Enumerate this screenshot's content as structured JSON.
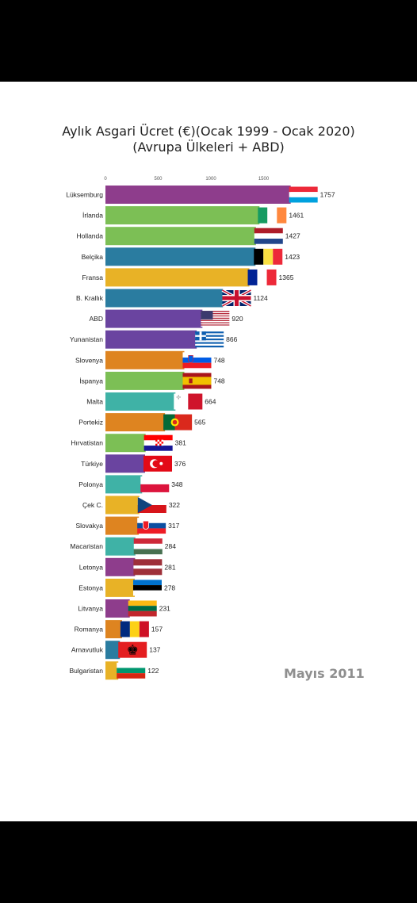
{
  "title": "Aylık Asgari Ücret (€)(Ocak 1999 - Ocak 2020)",
  "subtitle": "(Avrupa Ülkeleri + ABD)",
  "date_label": "Mayıs 2011",
  "chart_data": {
    "type": "bar",
    "orientation": "horizontal",
    "title": "Aylık Asgari Ücret (€)(Ocak 1999 - Ocak 2020)",
    "subtitle": "(Avrupa Ülkeleri + ABD)",
    "xlim": [
      0,
      1800
    ],
    "x_ticks": [
      0,
      500,
      1000,
      1500
    ],
    "categories": [
      "Lüksemburg",
      "İrlanda",
      "Hollanda",
      "Belçika",
      "Fransa",
      "B. Krallık",
      "ABD",
      "Yunanistan",
      "Slovenya",
      "İspanya",
      "Malta",
      "Portekiz",
      "Hırvatistan",
      "Türkiye",
      "Polonya",
      "Çek C.",
      "Slovakya",
      "Macaristan",
      "Letonya",
      "Estonya",
      "Litvanya",
      "Romanya",
      "Arnavutluk",
      "Bulgaristan"
    ],
    "values": [
      1757,
      1461,
      1427,
      1423,
      1365,
      1124,
      920,
      866,
      748,
      748,
      664,
      565,
      381,
      376,
      348,
      322,
      317,
      284,
      281,
      278,
      231,
      157,
      137,
      122
    ],
    "bar_colors": [
      "#8e3d8c",
      "#7cbf55",
      "#7cbf55",
      "#2a7ca0",
      "#e8b226",
      "#2a7ca0",
      "#6a44a0",
      "#6a44a0",
      "#de8420",
      "#7cbf55",
      "#3fb2a6",
      "#de8420",
      "#7cbf55",
      "#6a44a0",
      "#3fb2a6",
      "#e8b226",
      "#de8420",
      "#3fb2a6",
      "#8e3d8c",
      "#e8b226",
      "#8e3d8c",
      "#de8420",
      "#2a7ca0",
      "#e8b226"
    ],
    "flags": [
      "luxembourg-flag",
      "ireland-flag",
      "netherlands-flag",
      "belgium-flag",
      "france-flag",
      "uk-flag",
      "usa-flag",
      "greece-flag",
      "slovenia-flag",
      "spain-flag",
      "malta-flag",
      "portugal-flag",
      "croatia-flag",
      "turkey-flag",
      "poland-flag",
      "czech-flag",
      "slovakia-flag",
      "hungary-flag",
      "latvia-flag",
      "estonia-flag",
      "lithuania-flag",
      "romania-flag",
      "albania-flag",
      "bulgaria-flag"
    ],
    "date": "Mayıs 2011",
    "grid": false
  }
}
